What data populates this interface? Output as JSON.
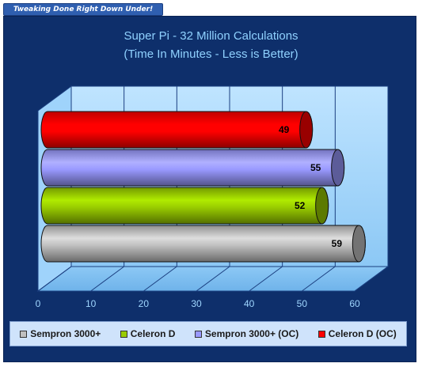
{
  "banner": {
    "text": "Tweaking Done Right Down Under!"
  },
  "chart_data": {
    "type": "bar",
    "orientation": "horizontal",
    "title": "Super Pi - 32 Million Calculations",
    "subtitle": "(Time In Minutes - Less is Better)",
    "xlim": [
      0,
      60
    ],
    "ticks": [
      0,
      10,
      20,
      30,
      40,
      50,
      60
    ],
    "grid": true,
    "legend_position": "bottom",
    "series": [
      {
        "name": "Sempron 3000+",
        "value": 59,
        "color": "#c0c0c0"
      },
      {
        "name": "Celeron D",
        "value": 52,
        "color": "#99cc00"
      },
      {
        "name": "Sempron 3000+ (OC)",
        "value": 55,
        "color": "#9999ff"
      },
      {
        "name": "Celeron D (OC)",
        "value": 49,
        "color": "#ff0000"
      }
    ]
  }
}
